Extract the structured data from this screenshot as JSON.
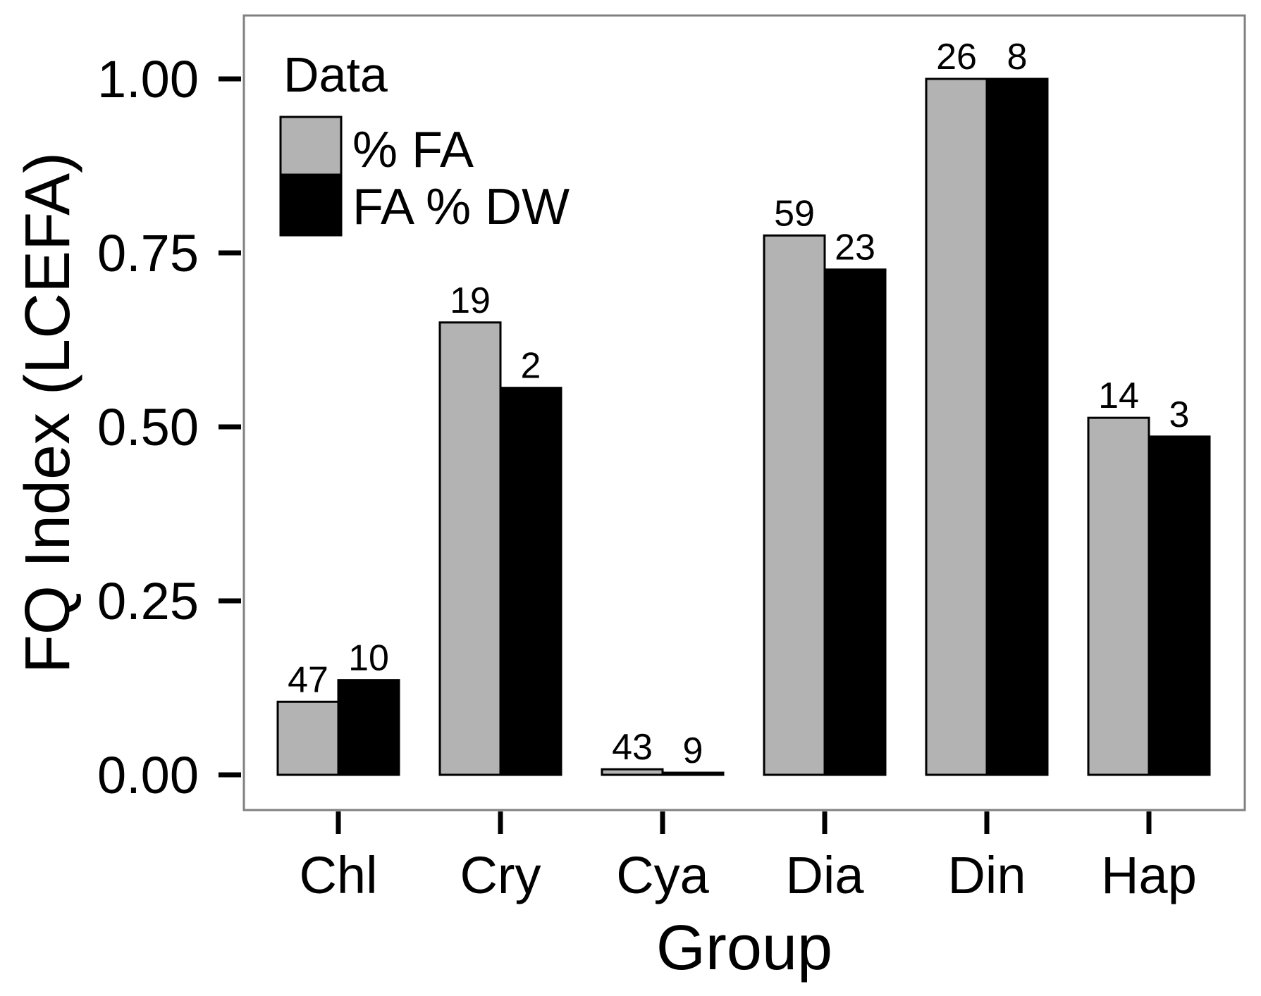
{
  "chart_data": {
    "type": "bar",
    "categories": [
      "Chl",
      "Cry",
      "Cya",
      "Dia",
      "Din",
      "Hap"
    ],
    "series": [
      {
        "name": "% FA",
        "values": [
          0.105,
          0.65,
          0.008,
          0.775,
          1.0,
          0.513
        ],
        "counts": [
          "47",
          "19",
          "43",
          "59",
          "26",
          "14"
        ],
        "color": "#b3b3b3"
      },
      {
        "name": "FA % DW",
        "values": [
          0.136,
          0.556,
          0.003,
          0.726,
          1.0,
          0.486
        ],
        "counts": [
          "10",
          "2",
          "9",
          "23",
          "8",
          "3"
        ],
        "color": "#000000"
      }
    ],
    "xlabel": "Group",
    "ylabel": "FQ Index (LCEFA)",
    "ylim": [
      -0.05,
      1.08
    ],
    "yticks": [
      0,
      0.25,
      0.5,
      0.75,
      1.0
    ],
    "ytick_labels": [
      "0.00",
      "0.25",
      "0.50",
      "0.75",
      "1.00"
    ],
    "legend": {
      "title": "Data",
      "position": "top-left"
    },
    "grid": false
  }
}
